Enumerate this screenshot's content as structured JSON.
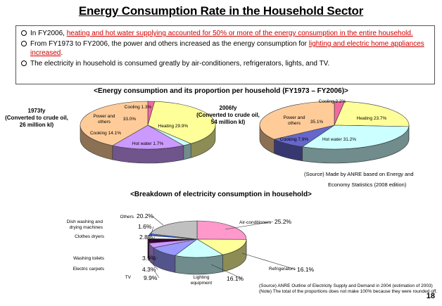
{
  "title": "Energy Consumption Rate in the Household Sector",
  "summary": [
    {
      "before": "In FY2006, ",
      "highlight": "heating and hot water supplying accounted for 50% or more of the energy consumption in the entire household.",
      "after": ""
    },
    {
      "before": "From FY1973 to FY2006, the power and others increased as the energy consumption for ",
      "highlight": "lighting and electric home appliances increased",
      "after": "."
    },
    {
      "before": "The electricity in household is consumed greatly by air-conditioners, refrigerators, lights, and TV.",
      "highlight": "",
      "after": ""
    }
  ],
  "section1_title": "<Energy consumption and its proportion per household (FY1973 – FY2006)>",
  "section2_title": "<Breakdown of electricity consumption in household>",
  "source1_line1": "(Source) Made by ANRE based on Energy and",
  "source1_line2": "Economy Statistics (2008 edition)",
  "source2_line1": "(Source) ANRE Outline of Electricity Supply and Demand in 2004 (estimation of 2003)",
  "source2_line2": "(Note) The total of the proportions does not make 100% because they were rounded off.",
  "page_number": "18",
  "chart_data": [
    {
      "type": "pie",
      "title": "1973fy (Converted to crude oil, 26 million kl)",
      "title_lines": [
        "1973fy",
        "(Converted to crude oil,",
        "26 million kl)"
      ],
      "slices": [
        {
          "label": "Cooling",
          "value_label": "1.3%",
          "value": 1.3,
          "color": "#f06aa0"
        },
        {
          "label": "Heating",
          "value_label": "29.9%",
          "value": 29.9,
          "color": "#ffff99"
        },
        {
          "label": "Hot water",
          "value_label": "1.7%",
          "value": 1.7,
          "color": "#ccffff"
        },
        {
          "label": "Cooking",
          "value_label": "14.1%",
          "value": 14.1,
          "color": "#cc99ff"
        },
        {
          "label": "Power and others",
          "value_label": "33.0%",
          "value": 33.0,
          "color": "#ffcc99"
        }
      ]
    },
    {
      "type": "pie",
      "title": "2006fy (Converted to crude oil, 54 million kl)",
      "title_lines": [
        "2006fy",
        "(Converted to crude oil,",
        "54 million kl)"
      ],
      "slices": [
        {
          "label": "Cooling",
          "value_label": "2.2%",
          "value": 2.2,
          "color": "#f06aa0"
        },
        {
          "label": "Heating",
          "value_label": "23.7%",
          "value": 23.7,
          "color": "#ffff99"
        },
        {
          "label": "Hot water",
          "value_label": "31.2%",
          "value": 31.2,
          "color": "#ccffff"
        },
        {
          "label": "Cooking",
          "value_label": "7.9%",
          "value": 7.9,
          "color": "#6666cc"
        },
        {
          "label": "Power and others",
          "value_label": "35.1%",
          "value": 35.1,
          "color": "#ffcc99"
        }
      ]
    },
    {
      "type": "pie",
      "title": "",
      "slices": [
        {
          "label": "Air-conditioners",
          "value_label": "25.2%",
          "value": 25.2,
          "color": "#ff99cc"
        },
        {
          "label": "Refrigerators",
          "value_label": "16.1%",
          "value": 16.1,
          "color": "#ffff99"
        },
        {
          "label": "Lighting equipment",
          "value_label": "16.1%",
          "value": 16.1,
          "color": "#ccffff"
        },
        {
          "label": "TV",
          "value_label": "9.9%",
          "value": 9.9,
          "color": "#9999ff"
        },
        {
          "label": "Electric carpets",
          "value_label": "4.3%",
          "value": 4.3,
          "color": "#cc99ff"
        },
        {
          "label": "Washing toilets",
          "value_label": "3.9%",
          "value": 3.9,
          "color": "#330033"
        },
        {
          "label": "Clothes dryers",
          "value_label": "2.8%",
          "value": 2.8,
          "color": "#ffffff"
        },
        {
          "label": "Dish washing and drying machines",
          "value_label": "1.6%",
          "value": 1.6,
          "color": "#3366ff"
        },
        {
          "label": "Others",
          "value_label": "20.2%",
          "value": 20.2,
          "color": "#c0c0c0"
        }
      ]
    }
  ]
}
